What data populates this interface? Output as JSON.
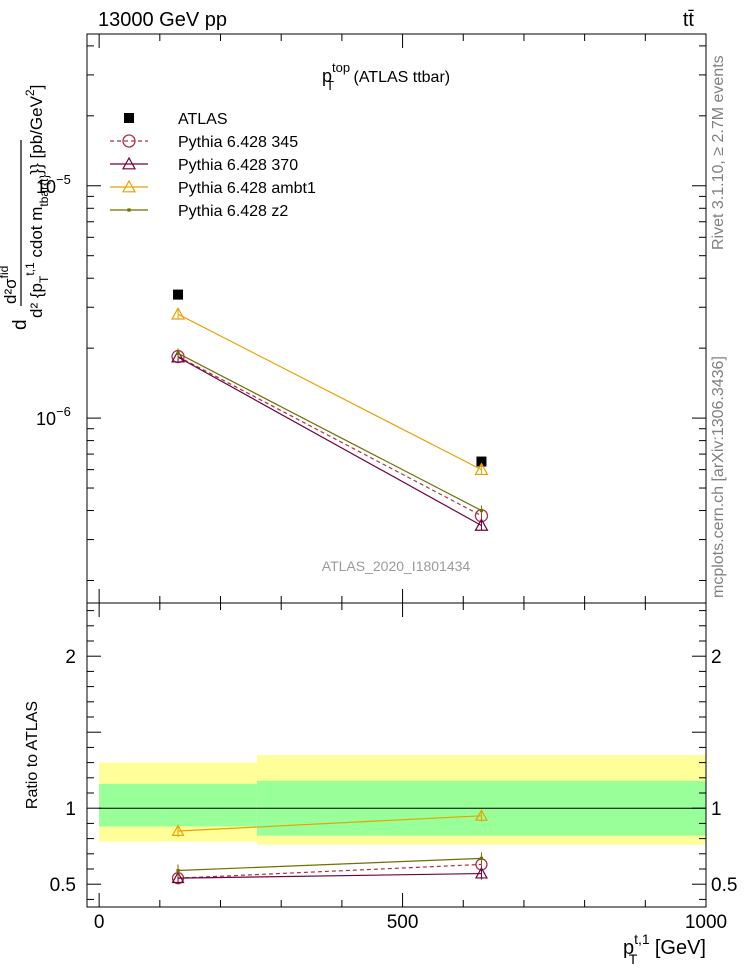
{
  "header": {
    "left": "13000 GeV pp",
    "right": "tt̄"
  },
  "side_labels": {
    "rivet": "Rivet 3.1.10, ≥ 2.7M events",
    "mcplots": "mcplots.cern.ch [arXiv:1306.3436]"
  },
  "chart_data": [
    {
      "type": "line",
      "panel": "main",
      "title": "p_T^top (ATLAS ttbar)",
      "title_parts": {
        "base": "p",
        "sup": "top",
        "sub": "T",
        "rest": " (ATLAS ttbar)"
      },
      "ylabel": "d²σ^fid / d² {p_T^{t,1} cdot m_{tbar{t}}} [pb/GeV²]",
      "ylabel_parts": {
        "d": "d",
        "numerator": "d²σ",
        "numerator_sup": "fid",
        "denominator": "d² {p",
        "denominator_sub": "T",
        "denominator_sup": "t,1",
        "denominator_rest": " cdot m",
        "denominator_sub2": "tbar{t}",
        "unit": "}} [pb/GeV",
        "unit_sup": "2",
        "unit_end": "]"
      },
      "yscale": "log",
      "xlim": [
        -20,
        1000
      ],
      "ylim": [
        1.6e-07,
        4.5e-05
      ],
      "y_ticks": [
        {
          "value": 1e-06,
          "base": "10",
          "exp": "−6"
        },
        {
          "value": 1e-05,
          "base": "10",
          "exp": "−5"
        }
      ],
      "watermark": "ATLAS_2020_I1801434",
      "legend_position": "top-left",
      "series": [
        {
          "name": "ATLAS",
          "color": "#000000",
          "marker": "square",
          "line": "none",
          "x": [
            130,
            630
          ],
          "y": [
            3.4e-06,
            6.5e-07
          ]
        },
        {
          "name": "Pythia 6.428 345",
          "color": "#a83246",
          "marker": "circle",
          "line": "dashed",
          "x": [
            130,
            630
          ],
          "y": [
            1.84e-06,
            3.8e-07
          ]
        },
        {
          "name": "Pythia 6.428 370",
          "color": "#73003c",
          "marker": "triangle",
          "line": "solid",
          "x": [
            130,
            630
          ],
          "y": [
            1.83e-06,
            3.45e-07
          ]
        },
        {
          "name": "Pythia 6.428 ambt1",
          "color": "#e8a200",
          "marker": "triangle",
          "line": "solid",
          "x": [
            130,
            630
          ],
          "y": [
            2.8e-06,
            6e-07
          ]
        },
        {
          "name": "Pythia 6.428 z2",
          "color": "#6e7000",
          "marker": "dot",
          "line": "solid",
          "x": [
            130,
            630
          ],
          "y": [
            1.9e-06,
            4e-07
          ]
        }
      ]
    },
    {
      "type": "line",
      "panel": "ratio",
      "ylabel": "Ratio to ATLAS",
      "xlabel": "p_T^{t,1} [GeV]",
      "xlabel_parts": {
        "base": "p",
        "sub": "T",
        "sup": "t,1",
        "rest": " [GeV]"
      },
      "xlim": [
        -20,
        1000
      ],
      "ylim": [
        0.35,
        2.35
      ],
      "x_ticks": [
        0,
        500,
        1000
      ],
      "y_ticks": [
        0.5,
        1,
        2
      ],
      "bands": [
        {
          "x": [
            0,
            260
          ],
          "inner": [
            0.88,
            1.16
          ],
          "outer": [
            0.78,
            1.3
          ]
        },
        {
          "x": [
            260,
            1000
          ],
          "inner": [
            0.82,
            1.18
          ],
          "outer": [
            0.76,
            1.35
          ]
        }
      ],
      "series": [
        {
          "name": "Pythia 6.428 345",
          "color": "#a83246",
          "marker": "circle",
          "line": "dashed",
          "x": [
            130,
            630
          ],
          "y": [
            0.54,
            0.63
          ]
        },
        {
          "name": "Pythia 6.428 370",
          "color": "#73003c",
          "marker": "triangle",
          "line": "solid",
          "x": [
            130,
            630
          ],
          "y": [
            0.54,
            0.57
          ]
        },
        {
          "name": "Pythia 6.428 ambt1",
          "color": "#e8a200",
          "marker": "triangle",
          "line": "solid",
          "x": [
            130,
            630
          ],
          "y": [
            0.85,
            0.95
          ]
        },
        {
          "name": "Pythia 6.428 z2",
          "color": "#6e7000",
          "marker": "dot",
          "line": "solid",
          "x": [
            130,
            630
          ],
          "y": [
            0.59,
            0.67
          ]
        }
      ]
    }
  ]
}
